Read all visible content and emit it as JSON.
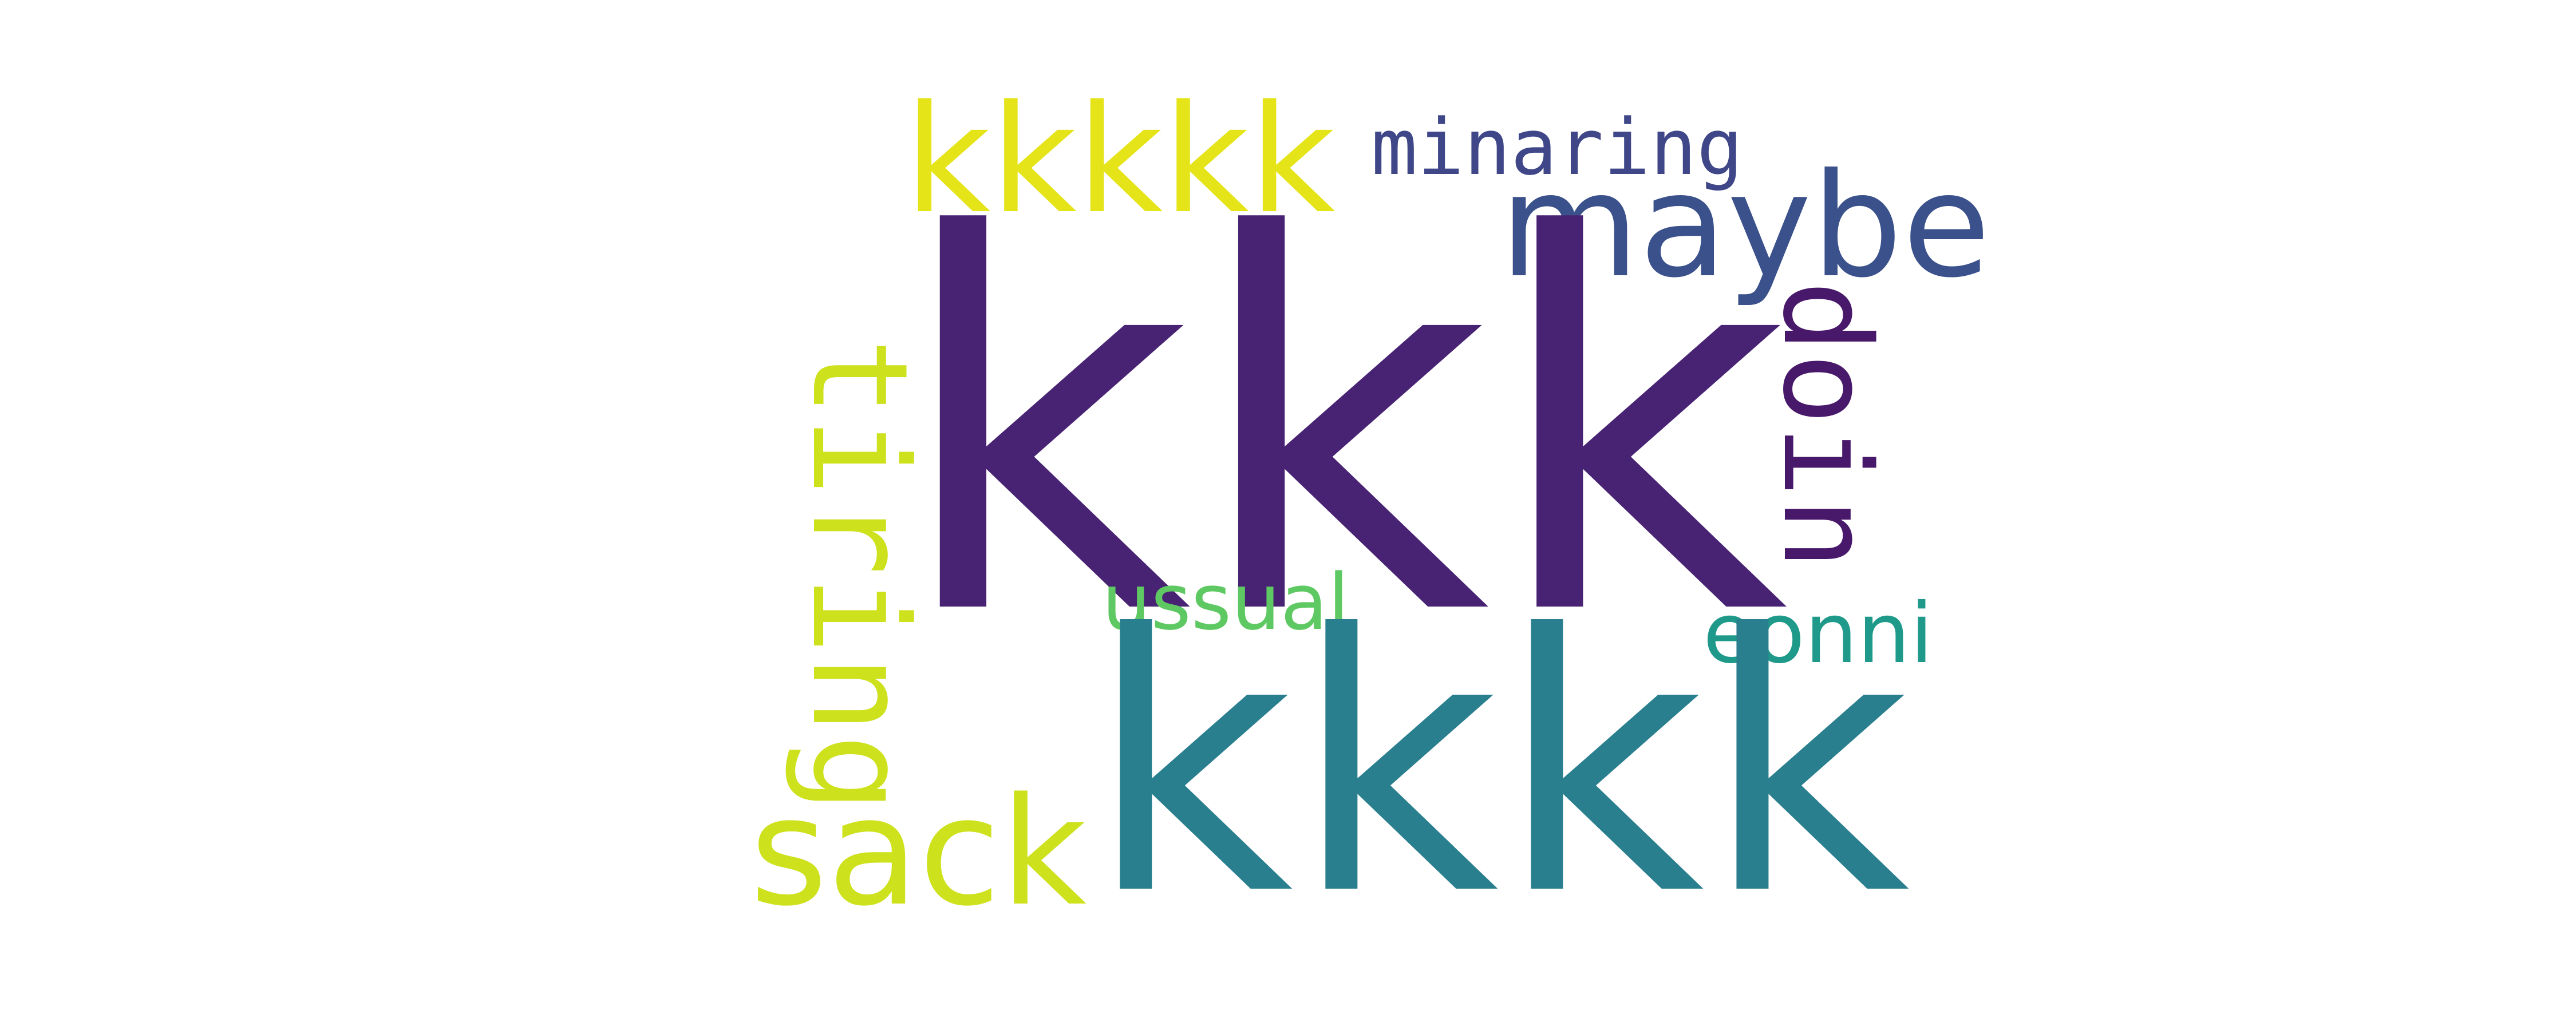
{
  "words": {
    "kkk": "kkk",
    "kkkk": "kkkk",
    "kkkkk": "kkkkk",
    "tiring": "tiring",
    "sack": "sack",
    "ussual": "ussual",
    "minaring": "minaring",
    "maybe": "maybe",
    "doin": "doin",
    "eonni": "eonni"
  },
  "colors": {
    "background": "#ffffff",
    "kkk": "#482374",
    "kkkk": "#2a7f8e",
    "kkkkk": "#e4e419",
    "tiring": "#cde11d",
    "sack": "#cde11d",
    "ussual": "#5ec962",
    "minaring": "#3f4788",
    "maybe": "#3b518b",
    "doin": "#48186a",
    "eonni": "#1f9a8a"
  }
}
